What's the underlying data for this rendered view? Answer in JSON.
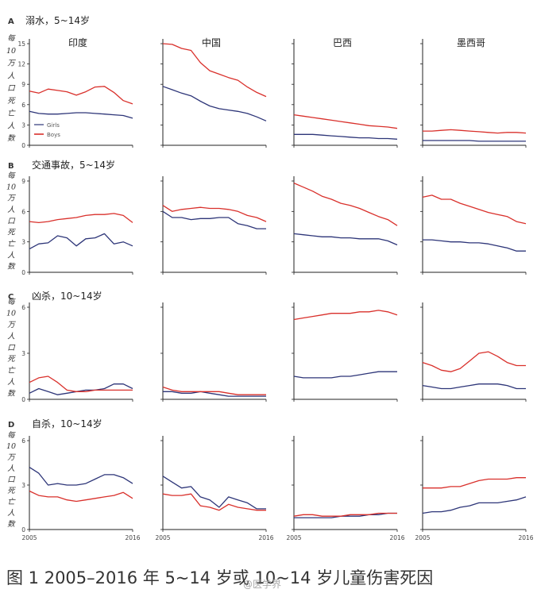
{
  "caption": "图 1 2005–2016 年 5~14 岁或 10~14 岁儿童伤害死因",
  "watermark": "@医学界",
  "countries": [
    "印度",
    "中国",
    "巴西",
    "墨西哥"
  ],
  "ylabel": "每10万人口死亡人数",
  "x_start_label": "2005",
  "x_end_label": "2016",
  "legend": {
    "girls": "Girls",
    "boys": "Boys"
  },
  "colors": {
    "girls": "#2d3578",
    "boys": "#d9302b",
    "axis": "#222222"
  },
  "chart_data": [
    {
      "type": "line",
      "panel": "A",
      "title": "溺水，5~14岁",
      "ylim": [
        0,
        15
      ],
      "yticks": [
        "0",
        "3",
        "6",
        "9",
        "12",
        "15"
      ],
      "x": [
        2005,
        2006,
        2007,
        2008,
        2009,
        2010,
        2011,
        2012,
        2013,
        2014,
        2015,
        2016
      ],
      "facets": [
        {
          "country": "印度",
          "series": [
            {
              "name": "Girls",
              "values": [
                5.0,
                4.7,
                4.6,
                4.6,
                4.7,
                4.8,
                4.8,
                4.7,
                4.6,
                4.5,
                4.4,
                4.0
              ]
            },
            {
              "name": "Boys",
              "values": [
                8.0,
                7.7,
                8.3,
                8.1,
                7.9,
                7.4,
                7.9,
                8.6,
                8.7,
                7.8,
                6.6,
                6.1
              ]
            }
          ]
        },
        {
          "country": "中国",
          "series": [
            {
              "name": "Girls",
              "values": [
                8.7,
                8.2,
                7.7,
                7.3,
                6.5,
                5.8,
                5.4,
                5.2,
                5.0,
                4.7,
                4.2,
                3.6
              ]
            },
            {
              "name": "Boys",
              "values": [
                15.0,
                14.9,
                14.3,
                14.0,
                12.2,
                11.0,
                10.5,
                10.0,
                9.6,
                8.6,
                7.8,
                7.2
              ]
            }
          ]
        },
        {
          "country": "巴西",
          "series": [
            {
              "name": "Girls",
              "values": [
                1.6,
                1.6,
                1.6,
                1.5,
                1.4,
                1.3,
                1.2,
                1.1,
                1.1,
                1.0,
                1.0,
                0.9
              ]
            },
            {
              "name": "Boys",
              "values": [
                4.5,
                4.3,
                4.1,
                3.9,
                3.7,
                3.5,
                3.3,
                3.1,
                2.9,
                2.8,
                2.7,
                2.5
              ]
            }
          ]
        },
        {
          "country": "墨西哥",
          "series": [
            {
              "name": "Girls",
              "values": [
                0.7,
                0.7,
                0.7,
                0.7,
                0.7,
                0.7,
                0.6,
                0.6,
                0.6,
                0.6,
                0.6,
                0.6
              ]
            },
            {
              "name": "Boys",
              "values": [
                2.1,
                2.1,
                2.2,
                2.3,
                2.2,
                2.1,
                2.0,
                1.9,
                1.8,
                1.9,
                1.9,
                1.8
              ]
            }
          ]
        }
      ]
    },
    {
      "type": "line",
      "panel": "B",
      "title": "交通事故，5~14岁",
      "ylim": [
        0,
        9
      ],
      "yticks": [
        "0",
        "3",
        "6",
        "9"
      ],
      "x": [
        2005,
        2006,
        2007,
        2008,
        2009,
        2010,
        2011,
        2012,
        2013,
        2014,
        2015,
        2016
      ],
      "facets": [
        {
          "country": "印度",
          "series": [
            {
              "name": "Girls",
              "values": [
                2.3,
                2.8,
                2.9,
                3.6,
                3.4,
                2.6,
                3.3,
                3.4,
                3.8,
                2.8,
                3.0,
                2.6
              ]
            },
            {
              "name": "Boys",
              "values": [
                5.0,
                4.9,
                5.0,
                5.2,
                5.3,
                5.4,
                5.6,
                5.7,
                5.7,
                5.8,
                5.6,
                4.9
              ]
            }
          ]
        },
        {
          "country": "中国",
          "series": [
            {
              "name": "Girls",
              "values": [
                6.0,
                5.4,
                5.4,
                5.2,
                5.3,
                5.3,
                5.4,
                5.4,
                4.8,
                4.6,
                4.3,
                4.3
              ]
            },
            {
              "name": "Boys",
              "values": [
                6.6,
                6.0,
                6.2,
                6.3,
                6.4,
                6.3,
                6.3,
                6.2,
                6.0,
                5.6,
                5.4,
                5.0
              ]
            }
          ]
        },
        {
          "country": "巴西",
          "series": [
            {
              "name": "Girls",
              "values": [
                3.8,
                3.7,
                3.6,
                3.5,
                3.5,
                3.4,
                3.4,
                3.3,
                3.3,
                3.3,
                3.1,
                2.7
              ]
            },
            {
              "name": "Boys",
              "values": [
                8.8,
                8.4,
                8.0,
                7.5,
                7.2,
                6.8,
                6.6,
                6.3,
                5.9,
                5.5,
                5.2,
                4.6
              ]
            }
          ]
        },
        {
          "country": "墨西哥",
          "series": [
            {
              "name": "Girls",
              "values": [
                3.2,
                3.2,
                3.1,
                3.0,
                3.0,
                2.9,
                2.9,
                2.8,
                2.6,
                2.4,
                2.1,
                2.1
              ]
            },
            {
              "name": "Boys",
              "values": [
                7.4,
                7.6,
                7.2,
                7.2,
                6.8,
                6.5,
                6.2,
                5.9,
                5.7,
                5.5,
                5.0,
                4.8
              ]
            }
          ]
        }
      ]
    },
    {
      "type": "line",
      "panel": "C",
      "title": "凶杀，10~14岁",
      "ylim": [
        0,
        6
      ],
      "yticks": [
        "0",
        "3",
        "6"
      ],
      "x": [
        2005,
        2006,
        2007,
        2008,
        2009,
        2010,
        2011,
        2012,
        2013,
        2014,
        2015,
        2016
      ],
      "facets": [
        {
          "country": "印度",
          "series": [
            {
              "name": "Girls",
              "values": [
                0.4,
                0.7,
                0.5,
                0.3,
                0.4,
                0.5,
                0.6,
                0.6,
                0.7,
                1.0,
                1.0,
                0.7
              ]
            },
            {
              "name": "Boys",
              "values": [
                1.1,
                1.4,
                1.5,
                1.1,
                0.6,
                0.5,
                0.5,
                0.6,
                0.6,
                0.6,
                0.6,
                0.6
              ]
            }
          ]
        },
        {
          "country": "中国",
          "series": [
            {
              "name": "Girls",
              "values": [
                0.5,
                0.5,
                0.4,
                0.4,
                0.5,
                0.4,
                0.3,
                0.2,
                0.2,
                0.2,
                0.2,
                0.2
              ]
            },
            {
              "name": "Boys",
              "values": [
                0.8,
                0.6,
                0.5,
                0.5,
                0.5,
                0.5,
                0.5,
                0.4,
                0.3,
                0.3,
                0.3,
                0.3
              ]
            }
          ]
        },
        {
          "country": "巴西",
          "series": [
            {
              "name": "Girls",
              "values": [
                1.5,
                1.4,
                1.4,
                1.4,
                1.4,
                1.5,
                1.5,
                1.6,
                1.7,
                1.8,
                1.8,
                1.8
              ]
            },
            {
              "name": "Boys",
              "values": [
                5.2,
                5.3,
                5.4,
                5.5,
                5.6,
                5.6,
                5.6,
                5.7,
                5.7,
                5.8,
                5.7,
                5.5
              ]
            }
          ]
        },
        {
          "country": "墨西哥",
          "series": [
            {
              "name": "Girls",
              "values": [
                0.9,
                0.8,
                0.7,
                0.7,
                0.8,
                0.9,
                1.0,
                1.0,
                1.0,
                0.9,
                0.7,
                0.7
              ]
            },
            {
              "name": "Boys",
              "values": [
                2.4,
                2.2,
                1.9,
                1.8,
                2.0,
                2.5,
                3.0,
                3.1,
                2.8,
                2.4,
                2.2,
                2.2
              ]
            }
          ]
        }
      ]
    },
    {
      "type": "line",
      "panel": "D",
      "title": "自杀，10~14岁",
      "ylim": [
        0,
        6
      ],
      "yticks": [
        "0",
        "3",
        "6"
      ],
      "x": [
        2005,
        2006,
        2007,
        2008,
        2009,
        2010,
        2011,
        2012,
        2013,
        2014,
        2015,
        2016
      ],
      "facets": [
        {
          "country": "印度",
          "series": [
            {
              "name": "Girls",
              "values": [
                4.2,
                3.8,
                3.0,
                3.1,
                3.0,
                3.0,
                3.1,
                3.4,
                3.7,
                3.7,
                3.5,
                3.1
              ]
            },
            {
              "name": "Boys",
              "values": [
                2.6,
                2.3,
                2.2,
                2.2,
                2.0,
                1.9,
                2.0,
                2.1,
                2.2,
                2.3,
                2.5,
                2.1
              ]
            }
          ]
        },
        {
          "country": "中国",
          "series": [
            {
              "name": "Girls",
              "values": [
                3.6,
                3.2,
                2.8,
                2.9,
                2.2,
                2.0,
                1.5,
                2.2,
                2.0,
                1.8,
                1.4,
                1.4
              ]
            },
            {
              "name": "Boys",
              "values": [
                2.4,
                2.3,
                2.3,
                2.4,
                1.6,
                1.5,
                1.3,
                1.7,
                1.5,
                1.4,
                1.3,
                1.3
              ]
            }
          ]
        },
        {
          "country": "巴西",
          "series": [
            {
              "name": "Girls",
              "values": [
                0.8,
                0.8,
                0.8,
                0.8,
                0.8,
                0.9,
                0.9,
                0.9,
                1.0,
                1.0,
                1.1,
                1.1
              ]
            },
            {
              "name": "Boys",
              "values": [
                0.9,
                1.0,
                1.0,
                0.9,
                0.9,
                0.9,
                1.0,
                1.0,
                1.0,
                1.1,
                1.1,
                1.1
              ]
            }
          ]
        },
        {
          "country": "墨西哥",
          "series": [
            {
              "name": "Girls",
              "values": [
                1.1,
                1.2,
                1.2,
                1.3,
                1.5,
                1.6,
                1.8,
                1.8,
                1.8,
                1.9,
                2.0,
                2.2
              ]
            },
            {
              "name": "Boys",
              "values": [
                2.8,
                2.8,
                2.8,
                2.9,
                2.9,
                3.1,
                3.3,
                3.4,
                3.4,
                3.4,
                3.5,
                3.5
              ]
            }
          ]
        }
      ]
    }
  ]
}
